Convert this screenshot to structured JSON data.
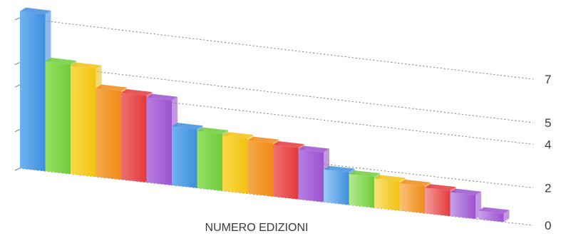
{
  "chart_data": {
    "type": "bar",
    "title": "",
    "xlabel": "NUMERO EDIZIONI",
    "ylabel": "",
    "y_ticks": [
      0,
      2,
      4,
      5,
      7
    ],
    "grid": true,
    "grid_style": "dotted",
    "legend": "none",
    "three_d": true,
    "categories": [
      "",
      "",
      "",
      "",
      "",
      "",
      "",
      "",
      "",
      "",
      "",
      "",
      "",
      "",
      "",
      "",
      "",
      "",
      ""
    ],
    "values": [
      9,
      6.3,
      6.2,
      5.1,
      5.0,
      4.9,
      3.4,
      3.3,
      3.2,
      3.1,
      3.0,
      2.9,
      1.9,
      1.8,
      1.7,
      1.6,
      1.5,
      1.4,
      0.5
    ],
    "colors": [
      "#3f8fde",
      "#6fcc3a",
      "#f2c20f",
      "#f08a17",
      "#e33a3a",
      "#9b52d0",
      "#3f8fde",
      "#6fcc3a",
      "#f2c20f",
      "#f08a17",
      "#e33a3a",
      "#9b52d0",
      "#3f8fde",
      "#6fcc3a",
      "#f2c20f",
      "#f08a17",
      "#e33a3a",
      "#9b52d0",
      "#9b52d0"
    ],
    "light_colors": [
      "#6fb3f0",
      "#96e066",
      "#f7da4a",
      "#f5a94a",
      "#f07070",
      "#b77fe0",
      "#6fb3f0",
      "#96e066",
      "#f7da4a",
      "#f5a94a",
      "#f07070",
      "#b77fe0",
      "#9ccaf5",
      "#b3eb8f",
      "#f9e27a",
      "#f8c27a",
      "#f49a9a",
      "#c9a1ea",
      "#c9a1ea"
    ]
  }
}
